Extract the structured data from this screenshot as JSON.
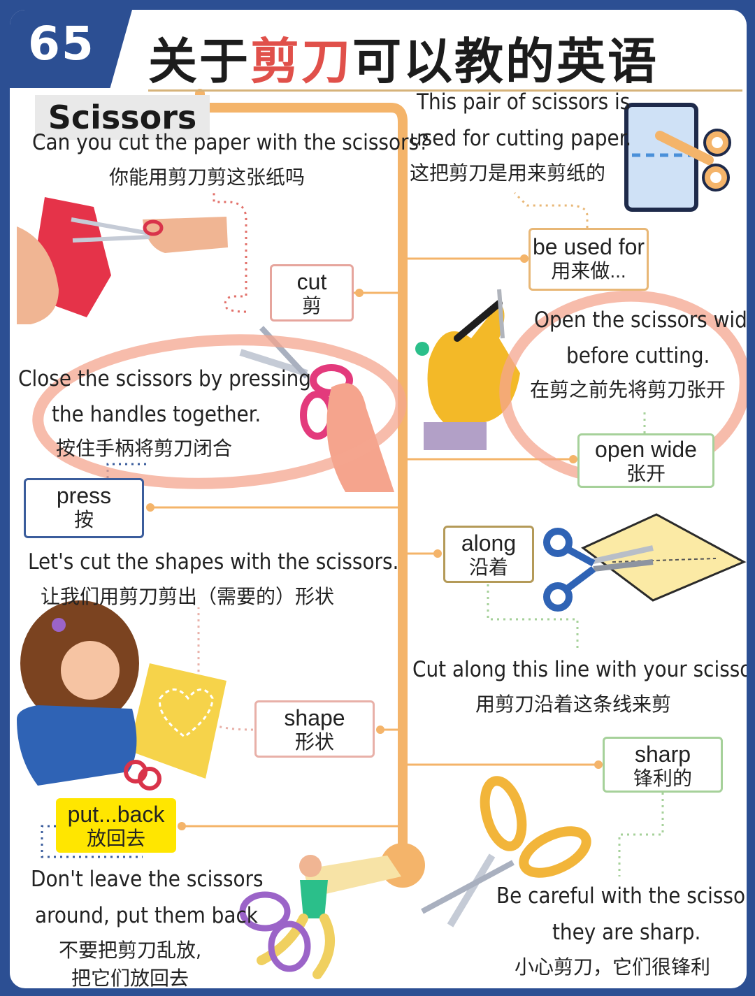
{
  "header": {
    "number": "65",
    "title_part1": "关于",
    "title_highlight": "剪刀",
    "title_part2": "可以教的英语"
  },
  "topic_tag": "Scissors",
  "entries": {
    "cut": {
      "sentence_en": "Can you cut the paper with the scissors?",
      "sentence_zh": "你能用剪刀剪这张纸吗",
      "word_en": "cut",
      "word_zh": "剪"
    },
    "be_used_for": {
      "sentence_en_line1": "This pair of scissors is",
      "sentence_en_line2": "used for cutting paper.",
      "sentence_zh": "这把剪刀是用来剪纸的",
      "word_en": "be used for",
      "word_zh": "用来做..."
    },
    "open_wide": {
      "sentence_en_line1": "Open the scissors wide",
      "sentence_en_line2": "before cutting.",
      "sentence_zh": "在剪之前先将剪刀张开",
      "word_en": "open wide",
      "word_zh": "张开"
    },
    "press": {
      "sentence_en_line1": "Close the scissors by pressing",
      "sentence_en_line2": "the handles together.",
      "sentence_zh": "按住手柄将剪刀闭合",
      "word_en": "press",
      "word_zh": "按"
    },
    "shape": {
      "sentence_en": "Let's cut the shapes with the scissors.",
      "sentence_zh": "让我们用剪刀剪出（需要的）形状",
      "word_en": "shape",
      "word_zh": "形状"
    },
    "along": {
      "sentence_en": "Cut along this line with your scissors.",
      "sentence_zh": "用剪刀沿着这条线来剪",
      "word_en": "along",
      "word_zh": "沿着"
    },
    "sharp": {
      "sentence_en_line1": "Be careful with the scissors,",
      "sentence_en_line2": "they are sharp.",
      "sentence_zh": "小心剪刀，它们很锋利",
      "word_en": "sharp",
      "word_zh": "锋利的"
    },
    "put_back": {
      "sentence_en_line1": "Don't leave the scissors",
      "sentence_en_line2": "around, put them back",
      "sentence_zh_line1": "不要把剪刀乱放,",
      "sentence_zh_line2": "把它们放回去",
      "word_en": "put...back",
      "word_zh": "放回去"
    }
  },
  "colors": {
    "frame": "#2c4f93",
    "trunk": "#f4b46a",
    "title_red": "#e0504a",
    "circle_highlight": "#f4a58f",
    "box_cut": "#e6a59d",
    "box_used_for": "#e8b776",
    "box_open_wide": "#a6d19a",
    "box_press": "#3b5d9c",
    "box_shape": "#e8b0a8",
    "box_along": "#b49a58",
    "box_sharp": "#a6d19a",
    "box_put_back": "#ffe600"
  }
}
